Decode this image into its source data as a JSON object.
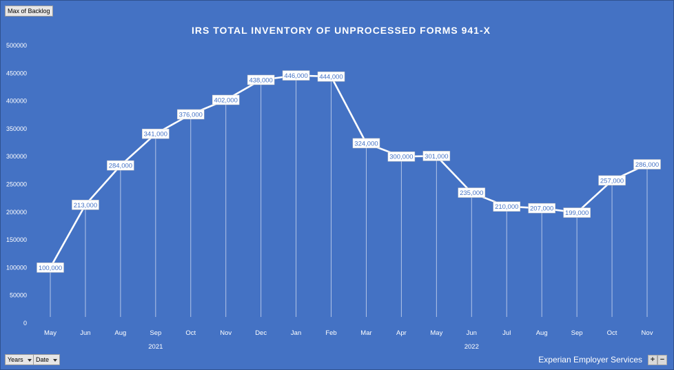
{
  "field_buttons": {
    "value_field": "Max of Backlog",
    "years": "Years",
    "date": "Date"
  },
  "branding": {
    "text": "Experian Employer Services",
    "zoom_in": "+",
    "zoom_out": "−"
  },
  "colors": {
    "background": "#4472C4",
    "line": "#FFFFFF",
    "label_box": "#FFFFFF",
    "label_text": "#4472C4"
  },
  "chart_data": {
    "type": "line",
    "title": "IRS TOTAL INVENTORY  OF UNPROCESSED FORMS 941-X",
    "xlabel": "",
    "ylabel": "",
    "ylim": [
      0,
      500000
    ],
    "yticks": [
      "0",
      "50000",
      "100000",
      "150000",
      "200000",
      "250000",
      "300000",
      "350000",
      "400000",
      "450000",
      "500000"
    ],
    "categories": [
      "May",
      "Jun",
      "Aug",
      "Sep",
      "Oct",
      "Nov",
      "Dec",
      "Jan",
      "Feb",
      "Mar",
      "Apr",
      "May",
      "Jun",
      "Jul",
      "Aug",
      "Sep",
      "Oct",
      "Nov"
    ],
    "groups": [
      {
        "label": "2021",
        "start": 0,
        "end": 6
      },
      {
        "label": "2022",
        "start": 7,
        "end": 17
      }
    ],
    "series": [
      {
        "values": [
          100000,
          213000,
          284000,
          341000,
          376000,
          402000,
          438000,
          446000,
          444000,
          324000,
          300000,
          301000,
          235000,
          210000,
          207000,
          199000,
          257000,
          286000
        ],
        "labels": [
          "100,000",
          "213,000",
          "284,000",
          "341,000",
          "376,000",
          "402,000",
          "438,000",
          "446,000",
          "444,000",
          "324,000",
          "300,000",
          "301,000",
          "235,000",
          "210,000",
          "207,000",
          "199,000",
          "257,000",
          "286,000"
        ]
      }
    ],
    "grid": false,
    "drop_lines": true,
    "data_labels": true,
    "legend": "none"
  }
}
